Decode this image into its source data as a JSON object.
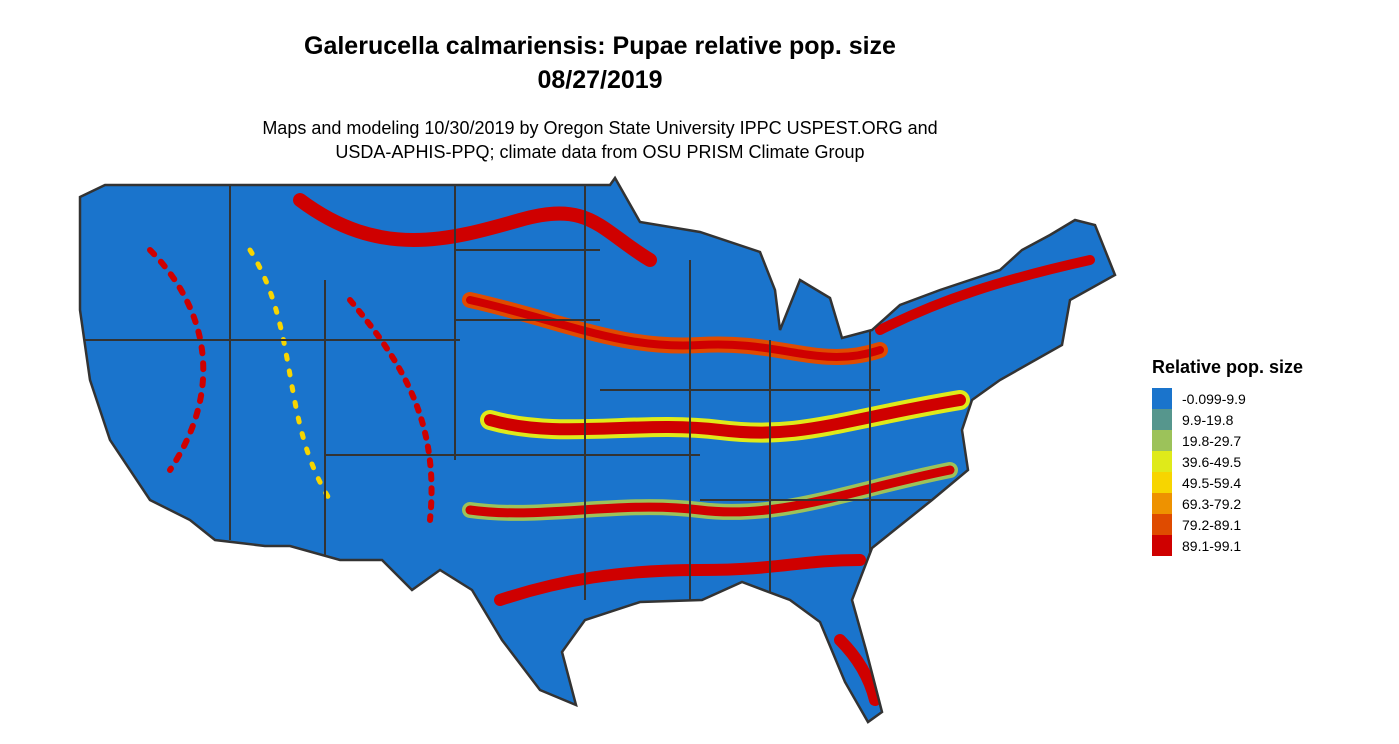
{
  "title": {
    "line1": "Galerucella calmariensis: Pupae relative pop. size",
    "line2": "08/27/2019"
  },
  "subtitle": {
    "line1": "Maps and modeling 10/30/2019 by Oregon State University IPPC USPEST.ORG and",
    "line2": "USDA-APHIS-PPQ; climate data from OSU PRISM Climate Group"
  },
  "map": {
    "region": "contiguous United States",
    "borders": "state boundaries",
    "background_class_color": "#1a74cc"
  },
  "legend": {
    "title": "Relative pop. size",
    "items": [
      {
        "label": "-0.099-9.9",
        "color": "#1a74cc"
      },
      {
        "label": "9.9-19.8",
        "color": "#56968d"
      },
      {
        "label": "19.8-29.7",
        "color": "#9cc25a"
      },
      {
        "label": "39.6-49.5",
        "color": "#dfea1a"
      },
      {
        "label": "49.5-59.4",
        "color": "#f7d500"
      },
      {
        "label": "69.3-79.2",
        "color": "#ee9200"
      },
      {
        "label": "79.2-89.1",
        "color": "#df4b00"
      },
      {
        "label": "89.1-99.1",
        "color": "#cf0000"
      }
    ]
  }
}
